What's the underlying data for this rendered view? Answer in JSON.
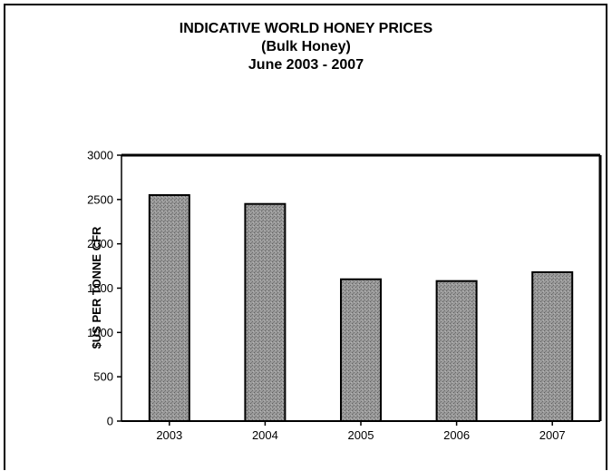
{
  "chart_data": {
    "type": "bar",
    "title": "INDICATIVE WORLD HONEY PRICES",
    "subtitle": "(Bulk Honey)",
    "subtitle2": "June 2003 - 2007",
    "xlabel": "",
    "ylabel": "$US PER TONNE CFR",
    "categories": [
      "2003",
      "2004",
      "2005",
      "2006",
      "2007"
    ],
    "values": [
      2550,
      2450,
      1600,
      1580,
      1680
    ],
    "ylim": [
      0,
      3000
    ],
    "yticks": [
      "0",
      "500",
      "1000",
      "1500",
      "2000",
      "2500",
      "3000"
    ],
    "grid": false,
    "legend": "none",
    "bar_color": "#8c8c8c"
  }
}
